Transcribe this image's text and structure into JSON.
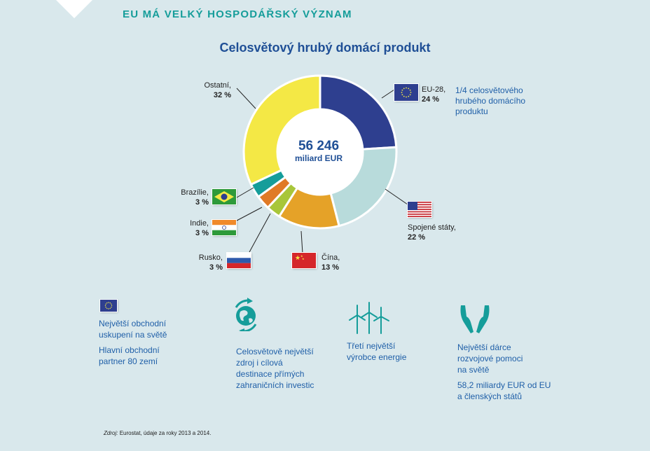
{
  "header": {
    "title": "EU MÁ VELKÝ HOSPODÁŘSKÝ VÝZNAM"
  },
  "chart_data": {
    "type": "pie",
    "title": "Celosvětový hrubý domácí produkt",
    "center_value": "56 246",
    "center_unit": "miliard EUR",
    "slices": [
      {
        "name": "EU-28,",
        "value": 24,
        "value_label": "24 %",
        "color": "#2e3f8f"
      },
      {
        "name": "Spojené státy,",
        "value": 22,
        "value_label": "22 %",
        "color": "#b8dbdb"
      },
      {
        "name": "Čína,",
        "value": 13,
        "value_label": "13 %",
        "color": "#e5a228"
      },
      {
        "name": "Rusko,",
        "value": 3,
        "value_label": "3 %",
        "color": "#a8c63a"
      },
      {
        "name": "Indie,",
        "value": 3,
        "value_label": "3 %",
        "color": "#e07a26"
      },
      {
        "name": "Brazílie,",
        "value": 3,
        "value_label": "3 %",
        "color": "#159d9a"
      },
      {
        "name": "Ostatní,",
        "value": 32,
        "value_label": "32 %",
        "color": "#f4e845"
      }
    ],
    "eu_note": "1/4 celosvětového hrubého domácího produktu"
  },
  "features": [
    {
      "icon": "eu-flag-icon",
      "lines": [
        "Největší obchodní",
        "uskupení na světě"
      ],
      "lines2": [
        "Hlavní obchodní",
        "partner 80 zemí"
      ]
    },
    {
      "icon": "globe-arrows-icon",
      "lines": [
        "Celosvětově největší",
        "zdroj i cílová",
        "destinace přímých",
        "zahraničních investic"
      ]
    },
    {
      "icon": "wind-turbines-icon",
      "lines": [
        "Třetí největší",
        "výrobce energie"
      ]
    },
    {
      "icon": "helping-hands-icon",
      "lines": [
        "Největší dárce",
        "rozvojové pomoci",
        "na světě"
      ],
      "lines2": [
        "58,2 miliardy EUR od EU",
        "a členských států"
      ]
    }
  ],
  "source": {
    "label": "Zdroj:",
    "text": "Eurostat, údaje za roky 2013 a 2014."
  }
}
